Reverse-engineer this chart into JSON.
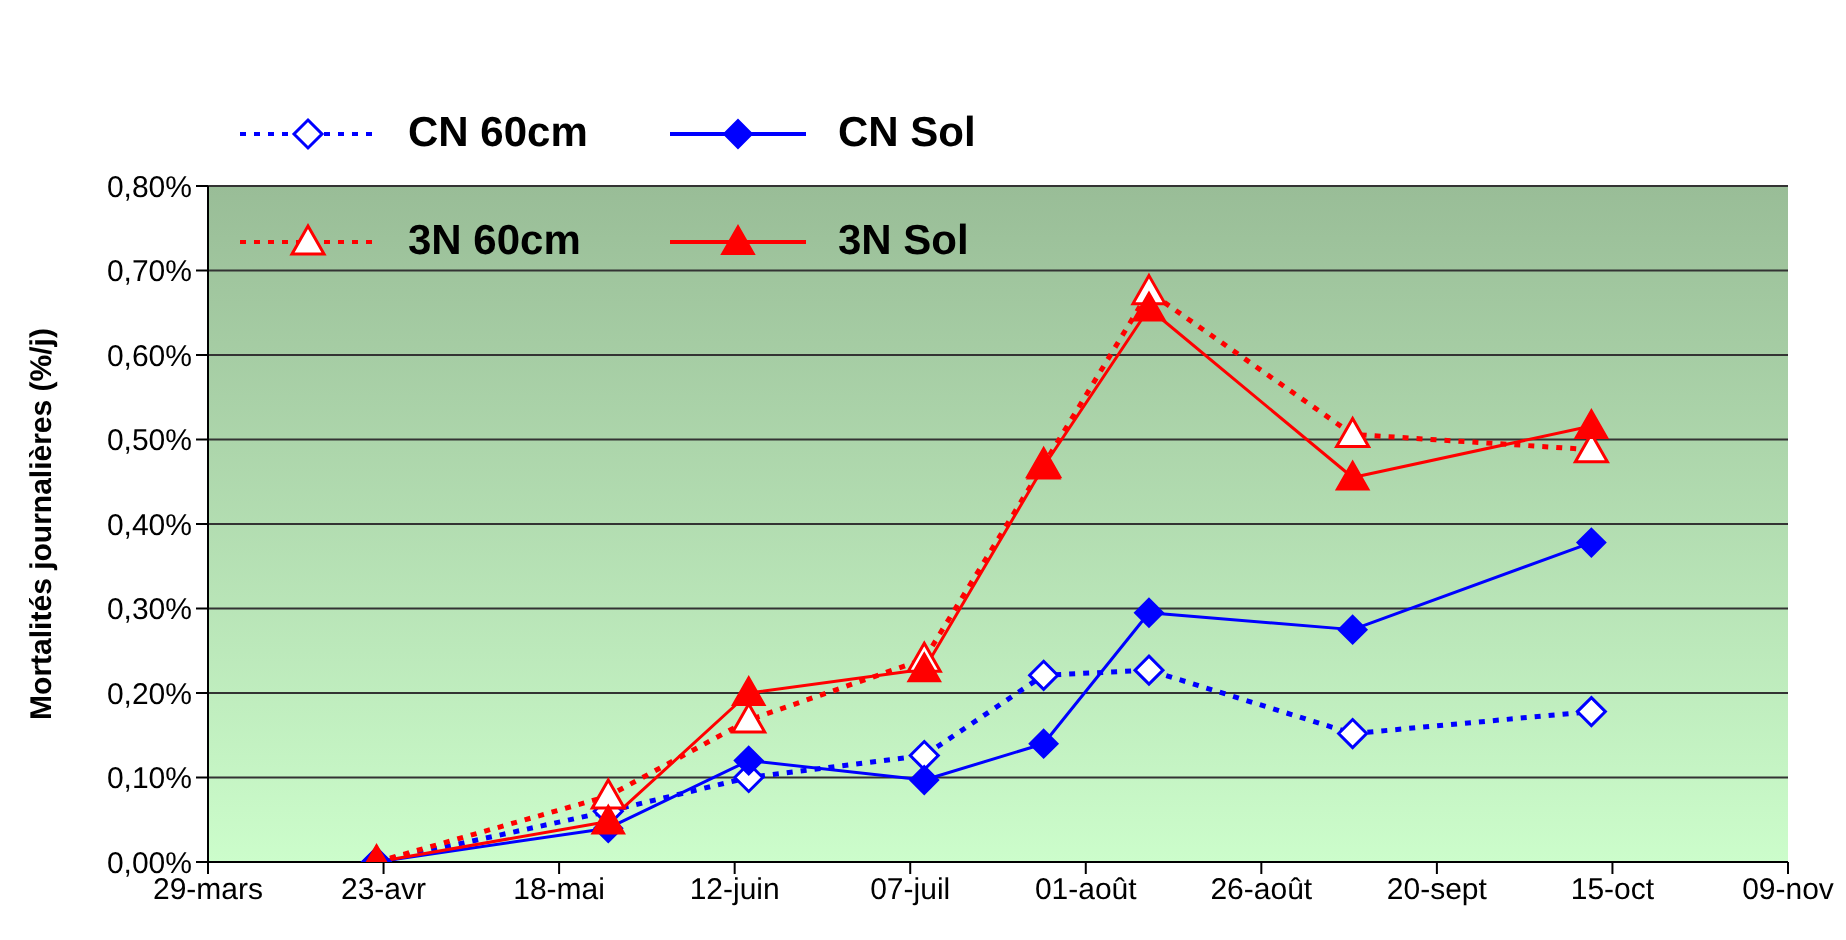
{
  "chart_data": {
    "type": "line",
    "ylabel": "Mortalités journalières (%/j)",
    "x": [
      "--04-22",
      "--05-25",
      "--06-14",
      "--07-09",
      "--07-26",
      "--08-10",
      "--09-08",
      "--10-12"
    ],
    "xlim": [
      "--03-29",
      "--11-09"
    ],
    "xticks": [
      {
        "value": "--03-29",
        "label": "29-mars"
      },
      {
        "value": "--04-23",
        "label": "23-avr"
      },
      {
        "value": "--05-18",
        "label": "18-mai"
      },
      {
        "value": "--06-12",
        "label": "12-juin"
      },
      {
        "value": "--07-07",
        "label": "07-juil"
      },
      {
        "value": "--08-01",
        "label": "01-août"
      },
      {
        "value": "--08-26",
        "label": "26-août"
      },
      {
        "value": "--09-20",
        "label": "20-sept"
      },
      {
        "value": "--10-15",
        "label": "15-oct"
      },
      {
        "value": "--11-09",
        "label": "09-nov"
      }
    ],
    "ylim": [
      0,
      0.8
    ],
    "yticks": [
      {
        "value": 0,
        "label": "0,00%"
      },
      {
        "value": 0.1,
        "label": "0,10%"
      },
      {
        "value": 0.2,
        "label": "0,20%"
      },
      {
        "value": 0.3,
        "label": "0,30%"
      },
      {
        "value": 0.4,
        "label": "0,40%"
      },
      {
        "value": 0.5,
        "label": "0,50%"
      },
      {
        "value": 0.6,
        "label": "0,60%"
      },
      {
        "value": 0.7,
        "label": "0,70%"
      },
      {
        "value": 0.8,
        "label": "0,80%"
      }
    ],
    "grid": "y",
    "legend": "top left",
    "series": [
      {
        "name": "CN 60cm",
        "color": "#0000ff",
        "marker": "diamond",
        "line_style": "dotted",
        "values": [
          0,
          0.06,
          0.1,
          0.126,
          0.221,
          0.227,
          0.152,
          0.178
        ]
      },
      {
        "name": "CN Sol",
        "color": "#0000ff",
        "marker": "diamond",
        "line_style": "solid",
        "values": [
          0,
          0.04,
          0.12,
          0.097,
          0.14,
          0.295,
          0.275,
          0.378
        ]
      },
      {
        "name": "3N 60cm",
        "color": "#ff0000",
        "marker": "triangle",
        "line_style": "dotted",
        "values": [
          0,
          0.078,
          0.168,
          0.24,
          0.47,
          0.675,
          0.506,
          0.488
        ]
      },
      {
        "name": "3N Sol",
        "color": "#ff0000",
        "marker": "triangle",
        "line_style": "solid",
        "values": [
          0,
          0.048,
          0.2,
          0.228,
          0.468,
          0.655,
          0.455,
          0.516
        ]
      }
    ]
  }
}
